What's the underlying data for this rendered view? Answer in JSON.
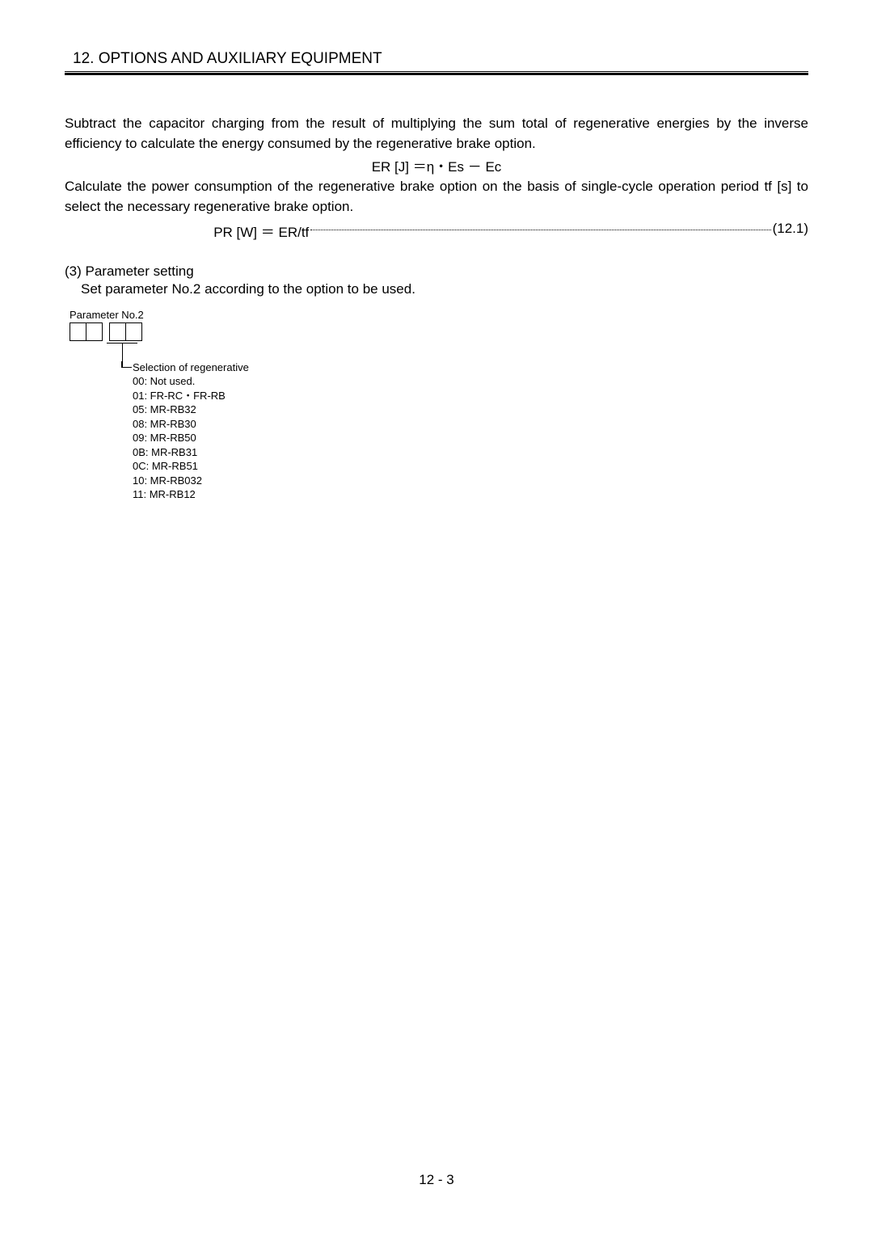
{
  "chapter_title": "12. OPTIONS AND AUXILIARY EQUIPMENT",
  "para1": "Subtract the capacitor charging from the result of multiplying the sum total of regenerative energies by the inverse efficiency to calculate the energy consumed by the regenerative brake option.",
  "formula1": "ER [J] ＝η・Es － Ec",
  "para2": "Calculate the power consumption of the regenerative brake option on the basis of single-cycle operation period tf [s] to select the necessary regenerative brake option.",
  "formula2_prefix": "                                       PR [W] ＝ ER/tf",
  "formula2_suffix": "(12.1)",
  "section3_heading": "(3) Parameter setting",
  "section3_body": "Set parameter No.2 according to the option to be used.",
  "param_label": "Parameter No.2",
  "option_list_title": "Selection of regenerative",
  "options": [
    "00: Not used.",
    "01: FR-RC・FR-RB",
    "05: MR-RB32",
    "08: MR-RB30",
    "09: MR-RB50",
    "0B: MR-RB31",
    "0C: MR-RB51",
    "10: MR-RB032",
    "11: MR-RB12"
  ],
  "page_number": "12 -  3"
}
